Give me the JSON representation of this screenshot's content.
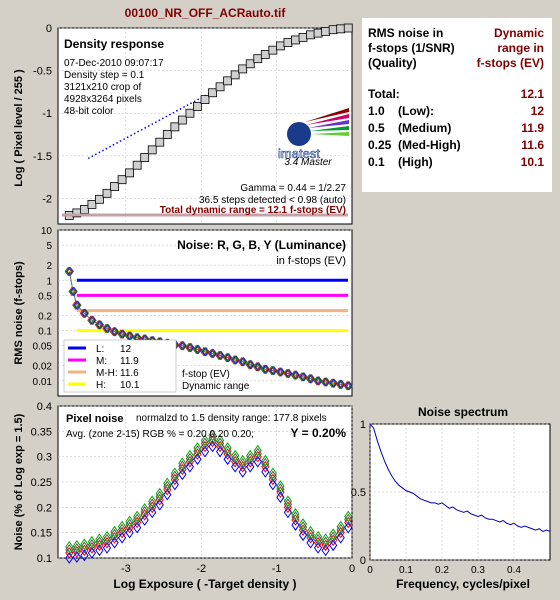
{
  "window_title": "00100_NR_OFF_ACRauto.tif",
  "colors": {
    "background": "#d4d0c8",
    "dark_red": "#800000",
    "blue": "#0000ff",
    "magenta": "#ff00ff",
    "orange": "#f4b183",
    "yellow": "#ffff00"
  },
  "density": {
    "title": "Density response",
    "info": [
      "07-Dec-2010 09:07:17",
      "Density step = 0.1",
      "3121x210 crop of",
      "4928x3264 pixels",
      "48-bit color"
    ],
    "logo_text": "imatest",
    "logo_version": "3.4  Master",
    "gamma": "Gamma = 0.44 = 1/2.27",
    "steps": "36.5 steps detected < 0.98 (auto)",
    "total": "Total dynamic range = 12.1 f-stops (EV)",
    "ylabel": "Log ( Pixel level / 255 )"
  },
  "table": {
    "hdr_left": [
      "RMS noise in",
      "f-stops (1/SNR)",
      "(Quality)"
    ],
    "hdr_right": [
      "Dynamic",
      "range in",
      "f-stops (EV)"
    ],
    "rows": [
      {
        "noise": "Total:",
        "quality": "",
        "range": "12.1"
      },
      {
        "noise": "1.0",
        "quality": "(Low):",
        "range": "12"
      },
      {
        "noise": "0.5",
        "quality": "(Medium)",
        "range": "11.9"
      },
      {
        "noise": "0.25",
        "quality": "(Med-High)",
        "range": "11.6"
      },
      {
        "noise": "0.1",
        "quality": "(High)",
        "range": "10.1"
      }
    ]
  },
  "rms": {
    "title": "Noise: R, G, B, Y (Luminance)",
    "subtitle": "in f-stops (EV)",
    "ylabel": "RMS noise (f-stops)",
    "legend": [
      {
        "key": "L:",
        "value": "12"
      },
      {
        "key": "M:",
        "value": "11.9"
      },
      {
        "key": "M-H:",
        "value": "11.6"
      },
      {
        "key": "H:",
        "value": "10.1"
      }
    ],
    "legend_fstop": "f-stop (EV)",
    "legend_dr": "Dynamic range"
  },
  "pixel": {
    "title": "Pixel noise",
    "normalized": "normalzd to 1.5 density range: 177.8 pixels",
    "avg": "Avg. (zone 2-15) RGB % = 0.20  0.20  0.20;",
    "y_value": "Y = 0.20%",
    "ylabel": "Noise (% of Log exp = 1.5)",
    "xlabel": "Log Exposure ( -Target density )"
  },
  "spectrum": {
    "title": "Noise spectrum",
    "xlabel": "Frequency, cycles/pixel"
  },
  "chart_data": [
    {
      "type": "line",
      "name": "density",
      "xlim": [
        -3.9,
        0
      ],
      "ylim": [
        -2.3,
        0
      ],
      "yticks": [
        "0",
        "-0.5",
        "-1",
        "-1.5",
        "-2"
      ],
      "yticks_values": [
        0,
        -0.5,
        -1,
        -1.5,
        -2
      ],
      "grid": true,
      "x": [
        -3.75,
        -3.65,
        -3.55,
        -3.45,
        -3.35,
        -3.25,
        -3.15,
        -3.05,
        -2.95,
        -2.85,
        -2.75,
        -2.65,
        -2.55,
        -2.45,
        -2.35,
        -2.25,
        -2.15,
        -2.05,
        -1.95,
        -1.85,
        -1.75,
        -1.65,
        -1.55,
        -1.45,
        -1.35,
        -1.25,
        -1.15,
        -1.05,
        -0.95,
        -0.85,
        -0.75,
        -0.65,
        -0.55,
        -0.45,
        -0.35,
        -0.25,
        -0.15,
        -0.05
      ],
      "y": [
        -2.2,
        -2.17,
        -2.13,
        -2.07,
        -2.01,
        -1.94,
        -1.86,
        -1.78,
        -1.7,
        -1.61,
        -1.52,
        -1.43,
        -1.34,
        -1.25,
        -1.16,
        -1.08,
        -1.0,
        -0.92,
        -0.84,
        -0.76,
        -0.69,
        -0.62,
        -0.55,
        -0.48,
        -0.42,
        -0.36,
        -0.31,
        -0.26,
        -0.21,
        -0.17,
        -0.14,
        -0.11,
        -0.08,
        -0.06,
        -0.04,
        -0.02,
        -0.01,
        0.0
      ],
      "gamma_line": {
        "x": [
          -3.5,
          -1.6
        ],
        "y": [
          -1.53,
          -0.63
        ]
      }
    },
    {
      "type": "line",
      "name": "rms-noise",
      "scale": "log",
      "ylim": [
        0.005,
        10
      ],
      "yticks": [
        "10",
        "5",
        "2",
        "1",
        "0.5",
        "0.2",
        "0.1",
        "0.05",
        "0.02",
        "0.01"
      ],
      "yticks_values": [
        10,
        5,
        2,
        1,
        0.5,
        0.2,
        0.1,
        0.05,
        0.02,
        0.01
      ],
      "grid": true,
      "levels": [
        {
          "label": "L",
          "value": 1.0,
          "color": "#0000ff"
        },
        {
          "label": "M",
          "value": 0.5,
          "color": "#ff00ff"
        },
        {
          "label": "M-H",
          "value": 0.25,
          "color": "#f4b183"
        },
        {
          "label": "H",
          "value": 0.1,
          "color": "#ffff00"
        }
      ],
      "x": [
        -3.75,
        -3.7,
        -3.65,
        -3.55,
        -3.45,
        -3.35,
        -3.25,
        -3.15,
        -3.05,
        -2.95,
        -2.85,
        -2.75,
        -2.65,
        -2.55,
        -2.45,
        -2.35,
        -2.25,
        -2.15,
        -2.05,
        -1.95,
        -1.85,
        -1.75,
        -1.65,
        -1.55,
        -1.45,
        -1.35,
        -1.25,
        -1.15,
        -1.05,
        -0.95,
        -0.85,
        -0.75,
        -0.65,
        -0.55,
        -0.45,
        -0.35,
        -0.25,
        -0.15,
        -0.05
      ],
      "y": [
        1.5,
        0.6,
        0.32,
        0.22,
        0.16,
        0.13,
        0.11,
        0.095,
        0.085,
        0.078,
        0.072,
        0.068,
        0.063,
        0.06,
        0.056,
        0.052,
        0.05,
        0.046,
        0.042,
        0.038,
        0.035,
        0.032,
        0.029,
        0.026,
        0.024,
        0.021,
        0.019,
        0.017,
        0.016,
        0.015,
        0.014,
        0.013,
        0.012,
        0.011,
        0.01,
        0.0095,
        0.009,
        0.0085,
        0.008
      ]
    },
    {
      "type": "scatter",
      "name": "pixel-noise",
      "xlim": [
        -3.9,
        0
      ],
      "ylim": [
        0.1,
        0.4
      ],
      "xticks": [
        "-3",
        "-2",
        "-1",
        "0"
      ],
      "xticks_values": [
        -3,
        -2,
        -1,
        0
      ],
      "yticks": [
        "0.4",
        "0.35",
        "0.3",
        "0.25",
        "0.2",
        "0.15",
        "0.1"
      ],
      "yticks_values": [
        0.4,
        0.35,
        0.3,
        0.25,
        0.2,
        0.15,
        0.1
      ],
      "grid": true,
      "x": [
        -3.75,
        -3.65,
        -3.55,
        -3.45,
        -3.35,
        -3.25,
        -3.15,
        -3.05,
        -2.95,
        -2.85,
        -2.75,
        -2.65,
        -2.55,
        -2.45,
        -2.35,
        -2.25,
        -2.15,
        -2.05,
        -1.95,
        -1.85,
        -1.75,
        -1.65,
        -1.55,
        -1.45,
        -1.35,
        -1.25,
        -1.15,
        -1.05,
        -0.95,
        -0.85,
        -0.75,
        -0.65,
        -0.55,
        -0.45,
        -0.35,
        -0.25,
        -0.15,
        -0.05
      ],
      "y": [
        0.11,
        0.112,
        0.115,
        0.12,
        0.125,
        0.13,
        0.14,
        0.15,
        0.16,
        0.17,
        0.185,
        0.2,
        0.215,
        0.235,
        0.255,
        0.275,
        0.29,
        0.305,
        0.32,
        0.33,
        0.32,
        0.305,
        0.29,
        0.28,
        0.29,
        0.3,
        0.28,
        0.255,
        0.23,
        0.2,
        0.175,
        0.155,
        0.14,
        0.13,
        0.125,
        0.135,
        0.15,
        0.17
      ],
      "colors": [
        "#ff0000",
        "#00aa00",
        "#0000ff",
        "#555555"
      ]
    },
    {
      "type": "line",
      "name": "noise-spectrum",
      "xlim": [
        0,
        0.5
      ],
      "ylim": [
        0,
        1
      ],
      "xticks": [
        "0",
        "0.1",
        "0.2",
        "0.3",
        "0.4"
      ],
      "xticks_values": [
        0,
        0.1,
        0.2,
        0.3,
        0.4
      ],
      "yticks": [
        "1",
        "0.5",
        "0"
      ],
      "yticks_values": [
        1,
        0.5,
        0
      ],
      "grid": true,
      "x": [
        0.0,
        0.01,
        0.02,
        0.03,
        0.04,
        0.05,
        0.06,
        0.07,
        0.08,
        0.09,
        0.1,
        0.11,
        0.12,
        0.13,
        0.14,
        0.15,
        0.16,
        0.17,
        0.18,
        0.19,
        0.2,
        0.21,
        0.22,
        0.23,
        0.24,
        0.25,
        0.26,
        0.27,
        0.28,
        0.29,
        0.3,
        0.31,
        0.32,
        0.33,
        0.34,
        0.35,
        0.36,
        0.37,
        0.38,
        0.39,
        0.4,
        0.41,
        0.42,
        0.43,
        0.44,
        0.45,
        0.46,
        0.47,
        0.48,
        0.49,
        0.5
      ],
      "y": [
        1.0,
        0.97,
        0.88,
        0.8,
        0.73,
        0.67,
        0.62,
        0.58,
        0.55,
        0.53,
        0.51,
        0.5,
        0.49,
        0.47,
        0.45,
        0.44,
        0.43,
        0.42,
        0.42,
        0.41,
        0.42,
        0.4,
        0.38,
        0.39,
        0.37,
        0.36,
        0.35,
        0.36,
        0.34,
        0.33,
        0.32,
        0.33,
        0.31,
        0.3,
        0.3,
        0.29,
        0.28,
        0.29,
        0.27,
        0.26,
        0.27,
        0.25,
        0.24,
        0.25,
        0.24,
        0.23,
        0.22,
        0.23,
        0.21,
        0.22,
        0.21
      ]
    }
  ]
}
